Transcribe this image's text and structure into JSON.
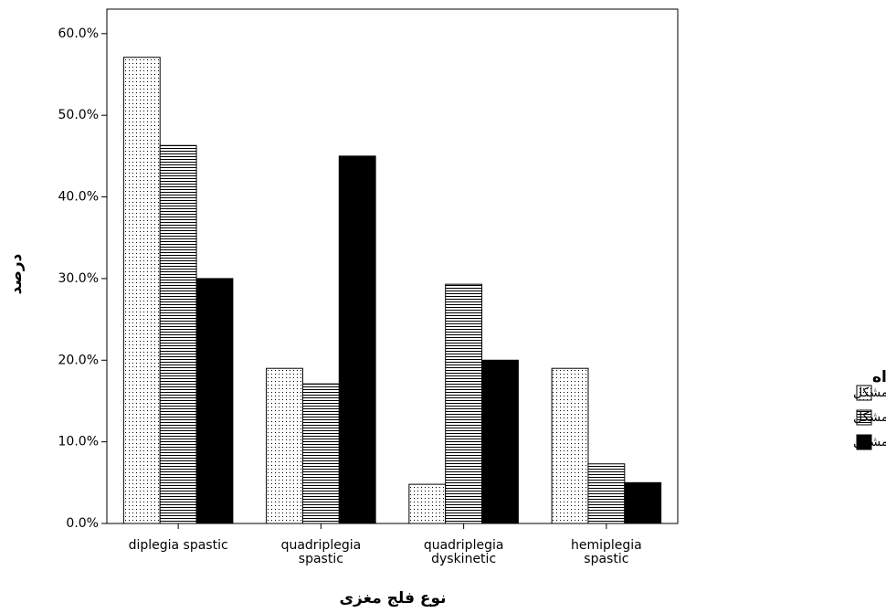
{
  "chart_data": {
    "type": "bar",
    "y_label": "درصد",
    "x_label": "نوع فلج مغزی",
    "categories": [
      [
        "diplegia spastic"
      ],
      [
        "quadriplegia",
        "spastic"
      ],
      [
        "quadriplegia",
        "dyskinetic"
      ],
      [
        "hemiplegia",
        "spastic"
      ]
    ],
    "legend_title": "تعدد مشکلات همراه",
    "legend": "right",
    "series": [
      {
        "name": "صفر تا یک مشکل",
        "color": "#000000",
        "pattern": "dots",
        "values": [
          57.1,
          19.0,
          4.8,
          19.0
        ]
      },
      {
        "name": "دو تا سه مشکل",
        "color": "#000000",
        "pattern": "hlines",
        "values": [
          46.3,
          17.1,
          29.3,
          7.3
        ]
      },
      {
        "name": "چهار تا شش مشکل",
        "color": "#000000",
        "pattern": "solid",
        "values": [
          30.0,
          45.0,
          20.0,
          5.0
        ]
      }
    ],
    "ylim": [
      0,
      63
    ],
    "yticks": [
      {
        "value": 0,
        "label": "0.0%"
      },
      {
        "value": 10,
        "label": "10.0%"
      },
      {
        "value": 20,
        "label": "20.0%"
      },
      {
        "value": 30,
        "label": "30.0%"
      },
      {
        "value": 40,
        "label": "40.0%"
      },
      {
        "value": 50,
        "label": "50.0%"
      },
      {
        "value": 60,
        "label": "60.0%"
      }
    ],
    "grid": false
  }
}
